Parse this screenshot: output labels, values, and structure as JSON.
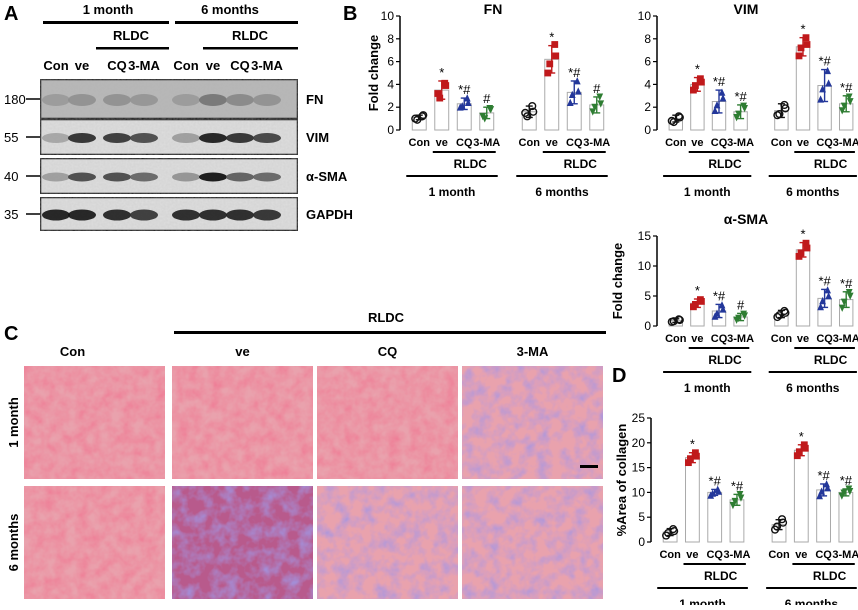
{
  "panel_labels": {
    "a": "A",
    "b": "B",
    "c": "C",
    "d": "D"
  },
  "groups": {
    "con": "Con",
    "ve": "ve",
    "cq": "CQ",
    "ma": "3-MA",
    "rldc": "RLDC",
    "month1": "1 month",
    "month6": "6 months"
  },
  "western": {
    "time_1": "1 month",
    "time_6": "6 months",
    "treatment": "RLDC",
    "lanes": [
      "Con",
      "ve",
      "CQ",
      "3-MA",
      "Con",
      "ve",
      "CQ",
      "3-MA"
    ],
    "blots": [
      {
        "protein": "FN",
        "mw": "180"
      },
      {
        "protein": "VIM",
        "mw": "55"
      },
      {
        "protein": "α-SMA",
        "mw": "40"
      },
      {
        "protein": "GAPDH",
        "mw": "35"
      }
    ]
  },
  "histology": {
    "treatment": "RLDC",
    "columns": [
      "Con",
      "ve",
      "CQ",
      "3-MA"
    ],
    "rows": [
      "1 month",
      "6 months"
    ]
  },
  "chart_data": [
    {
      "type": "bar",
      "title": "FN",
      "ylabel": "Fold change",
      "ylim": [
        0,
        10
      ],
      "yticks": [
        0,
        2,
        4,
        6,
        8,
        10
      ],
      "categories": [
        "Con",
        "ve",
        "CQ",
        "3-MA",
        "Con",
        "ve",
        "CQ",
        "3-MA"
      ],
      "values": [
        1.1,
        3.5,
        2.3,
        1.5,
        1.6,
        6.2,
        3.3,
        2.2
      ],
      "errors": [
        0.2,
        0.8,
        0.5,
        0.5,
        0.5,
        1.2,
        1.0,
        0.7
      ],
      "points": [
        [
          1.0,
          1.2,
          0.9,
          1.3
        ],
        [
          3.2,
          4.1,
          2.8,
          3.9
        ],
        [
          2.0,
          2.8,
          2.1,
          2.4
        ],
        [
          1.2,
          1.9,
          1.0,
          1.8
        ],
        [
          1.5,
          2.1,
          1.2,
          1.6
        ],
        [
          5.0,
          7.5,
          5.8,
          6.5
        ],
        [
          2.4,
          4.3,
          3.1,
          3.4
        ],
        [
          1.6,
          2.9,
          2.0,
          2.3
        ]
      ],
      "annotations": [
        "",
        "*",
        "*#",
        "#",
        "",
        "*",
        "*#",
        "#"
      ],
      "group_labels": [
        "1 month",
        "6 months"
      ],
      "treatment_label": "RLDC"
    },
    {
      "type": "bar",
      "title": "VIM",
      "ylabel": "",
      "ylim": [
        0,
        10
      ],
      "yticks": [
        0,
        2,
        4,
        6,
        8,
        10
      ],
      "categories": [
        "Con",
        "ve",
        "CQ",
        "3-MA",
        "Con",
        "ve",
        "CQ",
        "3-MA"
      ],
      "values": [
        1.0,
        4.0,
        2.5,
        1.6,
        1.7,
        7.3,
        3.9,
        2.3
      ],
      "errors": [
        0.3,
        0.6,
        1.0,
        0.6,
        0.6,
        0.8,
        1.4,
        0.7
      ],
      "points": [
        [
          0.8,
          1.2,
          0.7,
          1.1
        ],
        [
          3.5,
          4.5,
          3.9,
          4.2
        ],
        [
          1.7,
          3.3,
          2.2,
          2.8
        ],
        [
          1.1,
          2.1,
          1.4,
          1.9
        ],
        [
          1.3,
          2.2,
          1.4,
          1.9
        ],
        [
          6.5,
          8.1,
          7.2,
          7.5
        ],
        [
          2.7,
          5.2,
          3.6,
          4.1
        ],
        [
          1.7,
          2.9,
          2.1,
          2.5
        ]
      ],
      "annotations": [
        "",
        "*",
        "*#",
        "*#",
        "",
        "*",
        "*#",
        "*#"
      ],
      "group_labels": [
        "1 month",
        "6 months"
      ],
      "treatment_label": "RLDC"
    },
    {
      "type": "bar",
      "title": "α-SMA",
      "ylabel": "Fold change",
      "ylim": [
        0,
        15
      ],
      "yticks": [
        0,
        5,
        10,
        15
      ],
      "categories": [
        "Con",
        "ve",
        "CQ",
        "3-MA",
        "Con",
        "ve",
        "CQ",
        "3-MA"
      ],
      "values": [
        0.9,
        3.8,
        2.5,
        1.5,
        2.0,
        12.7,
        4.6,
        4.4
      ],
      "errors": [
        0.3,
        0.7,
        1.1,
        0.6,
        0.6,
        1.2,
        1.5,
        1.3
      ],
      "points": [
        [
          0.7,
          1.1,
          0.8,
          1.0
        ],
        [
          3.2,
          4.4,
          3.6,
          4.1
        ],
        [
          1.6,
          3.5,
          2.1,
          2.8
        ],
        [
          1.0,
          2.0,
          1.3,
          1.7
        ],
        [
          1.5,
          2.5,
          1.8,
          2.2
        ],
        [
          11.6,
          13.8,
          12.2,
          13.0
        ],
        [
          3.2,
          6.0,
          4.2,
          5.0
        ],
        [
          3.0,
          5.6,
          4.0,
          5.0
        ]
      ],
      "annotations": [
        "",
        "*",
        "*#",
        "#",
        "",
        "*",
        "*#",
        "*#"
      ],
      "group_labels": [
        "1 month",
        "6 months"
      ],
      "treatment_label": "RLDC"
    },
    {
      "type": "bar",
      "title": "",
      "ylabel": "%Area of collagen",
      "ylim": [
        0,
        25
      ],
      "yticks": [
        0,
        5,
        10,
        15,
        20,
        25
      ],
      "categories": [
        "Con",
        "ve",
        "CQ",
        "3-MA",
        "Con",
        "ve",
        "CQ",
        "3-MA"
      ],
      "values": [
        2.0,
        17.0,
        10.0,
        8.5,
        3.5,
        18.5,
        10.5,
        10.0
      ],
      "errors": [
        0.7,
        1.0,
        0.6,
        1.1,
        1.0,
        1.1,
        1.2,
        0.7
      ],
      "points": [
        [
          1.3,
          2.6,
          1.8,
          2.2
        ],
        [
          16.0,
          18.0,
          16.8,
          17.3
        ],
        [
          9.4,
          10.6,
          9.8,
          10.2
        ],
        [
          7.4,
          9.6,
          8.2,
          8.9
        ],
        [
          2.5,
          4.6,
          3.1,
          3.9
        ],
        [
          17.4,
          19.6,
          18.2,
          18.9
        ],
        [
          9.3,
          11.7,
          10.2,
          10.9
        ],
        [
          9.3,
          10.7,
          9.9,
          10.2
        ]
      ],
      "annotations": [
        "",
        "*",
        "*#",
        "*#",
        "",
        "*",
        "*#",
        "*#"
      ],
      "group_labels": [
        "1 month",
        "6 months"
      ],
      "treatment_label": "RLDC"
    }
  ],
  "colors": {
    "con": "#111111",
    "ve": "#c0191b",
    "cq": "#23379a",
    "ma": "#2e7d32",
    "bar_edge": "#aaaaaa"
  }
}
